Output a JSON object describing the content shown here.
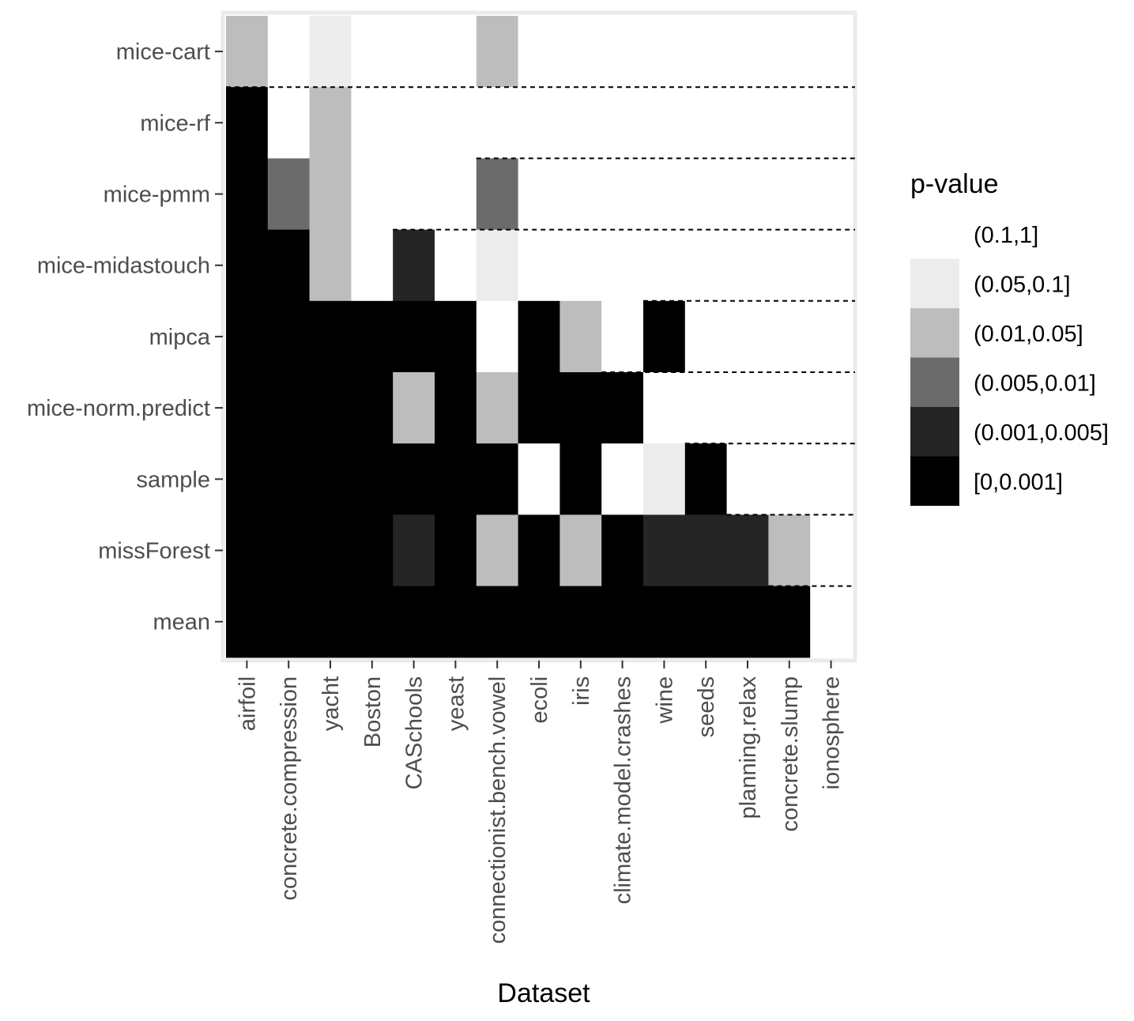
{
  "chart_data": {
    "type": "heatmap",
    "xlabel": "Dataset",
    "ylabel": "",
    "x_categories": [
      "airfoil",
      "concrete.compression",
      "yacht",
      "Boston",
      "CASchools",
      "yeast",
      "connectionist.bench.vowel",
      "ecoli",
      "iris",
      "climate.model.crashes",
      "wine",
      "seeds",
      "planning.relax",
      "concrete.slump",
      "ionosphere"
    ],
    "y_categories": [
      "mice-cart",
      "mice-rf",
      "mice-pmm",
      "mice-midastouch",
      "mipca",
      "mice-norm.predict",
      "sample",
      "missForest",
      "mean"
    ],
    "legend": {
      "title": "p-value",
      "position": "right",
      "levels": [
        "(0.1,1]",
        "(0.05,0.1]",
        "(0.01,0.05]",
        "(0.005,0.01]",
        "(0.001,0.005]",
        "[0,0.001]"
      ],
      "colors": [
        "#ffffff",
        "#ececec",
        "#bdbdbd",
        "#6b6b6b",
        "#252525",
        "#000000"
      ]
    },
    "grid": false,
    "cells": [
      [
        2,
        0,
        1,
        0,
        0,
        0,
        2,
        0,
        0,
        0,
        0,
        0,
        0,
        0,
        0
      ],
      [
        5,
        0,
        2,
        0,
        0,
        0,
        0,
        0,
        0,
        0,
        0,
        0,
        0,
        0,
        0
      ],
      [
        5,
        3,
        2,
        0,
        0,
        0,
        3,
        0,
        0,
        0,
        0,
        0,
        0,
        0,
        0
      ],
      [
        5,
        5,
        2,
        0,
        4,
        0,
        1,
        0,
        0,
        0,
        0,
        0,
        0,
        0,
        0
      ],
      [
        5,
        5,
        5,
        5,
        5,
        5,
        0,
        5,
        2,
        0,
        5,
        0,
        0,
        0,
        0
      ],
      [
        5,
        5,
        5,
        5,
        2,
        5,
        2,
        5,
        5,
        5,
        0,
        0,
        0,
        0,
        0
      ],
      [
        5,
        5,
        5,
        5,
        5,
        5,
        5,
        0,
        5,
        0,
        1,
        5,
        0,
        0,
        0
      ],
      [
        5,
        5,
        5,
        5,
        4,
        5,
        2,
        5,
        2,
        5,
        4,
        4,
        4,
        2,
        0
      ],
      [
        5,
        5,
        5,
        5,
        5,
        5,
        5,
        5,
        5,
        5,
        5,
        5,
        5,
        5,
        0
      ]
    ],
    "cell_value_encoding": "index into legend.levels"
  }
}
